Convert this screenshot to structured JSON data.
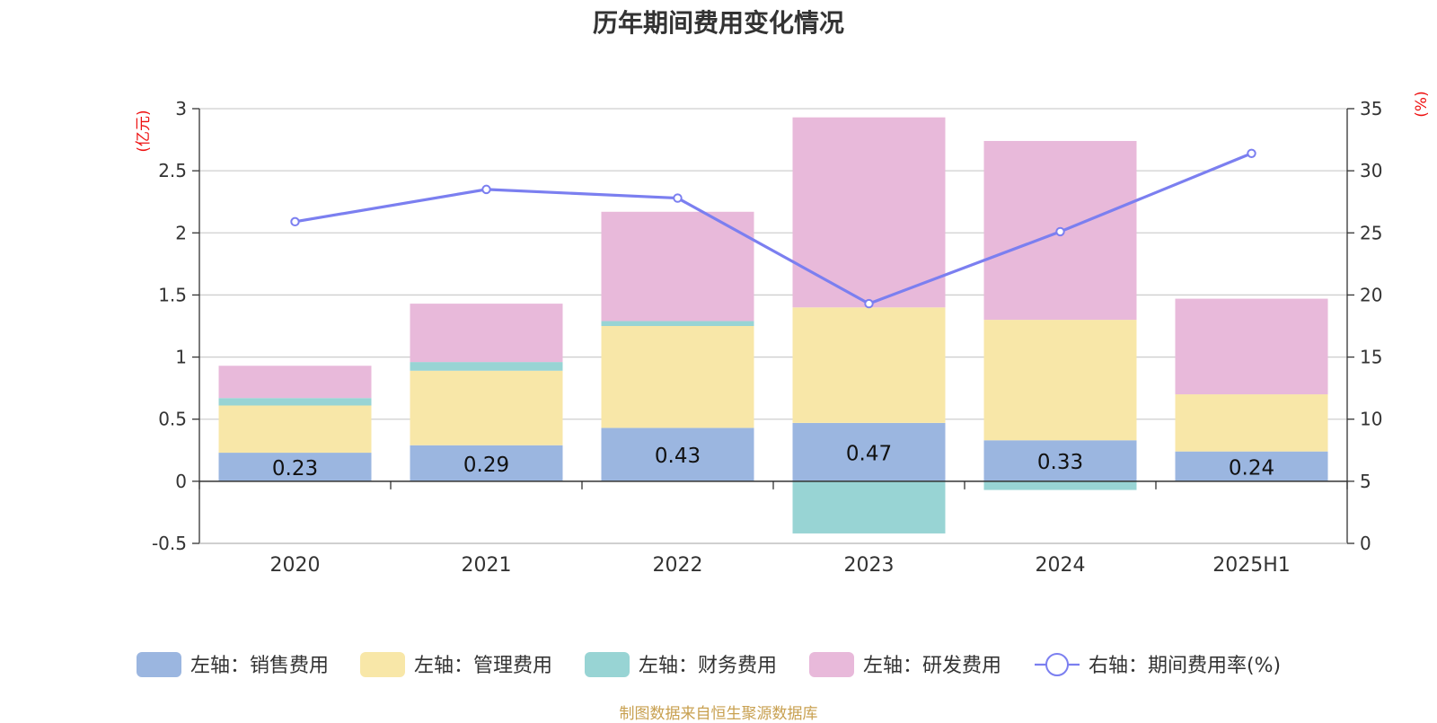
{
  "chart_data": {
    "type": "bar",
    "stacked": true,
    "title": "历年期间费用变化情况",
    "categories": [
      "2020",
      "2021",
      "2022",
      "2023",
      "2024",
      "2025H1"
    ],
    "left_axis": {
      "unit_label": "(亿元)",
      "ylim": [
        -0.5,
        3
      ],
      "ticks": [
        "-0.5",
        "0",
        "0.5",
        "1",
        "1.5",
        "2",
        "2.5",
        "3"
      ],
      "tick_values": [
        -0.5,
        0,
        0.5,
        1,
        1.5,
        2,
        2.5,
        3
      ]
    },
    "right_axis": {
      "unit_label": "(%)",
      "ylim": [
        0,
        35
      ],
      "ticks": [
        "0",
        "5",
        "10",
        "15",
        "20",
        "25",
        "30",
        "35"
      ],
      "tick_values": [
        0,
        5,
        10,
        15,
        20,
        25,
        30,
        35
      ]
    },
    "series": [
      {
        "name": "左轴：销售费用",
        "axis": "left",
        "kind": "bar",
        "color": "#9bb6e0",
        "values": [
          0.23,
          0.29,
          0.43,
          0.47,
          0.33,
          0.24
        ],
        "labels": [
          "0.23",
          "0.29",
          "0.43",
          "0.47",
          "0.33",
          "0.24"
        ]
      },
      {
        "name": "左轴：管理费用",
        "axis": "left",
        "kind": "bar",
        "color": "#f8e7a8",
        "values": [
          0.38,
          0.6,
          0.82,
          0.93,
          0.97,
          0.46
        ]
      },
      {
        "name": "左轴：财务费用",
        "axis": "left",
        "kind": "bar",
        "color": "#98d4d4",
        "values": [
          0.06,
          0.07,
          0.04,
          -0.42,
          -0.07,
          0.0
        ]
      },
      {
        "name": "左轴：研发费用",
        "axis": "left",
        "kind": "bar",
        "color": "#e8b9da",
        "values": [
          0.26,
          0.47,
          0.88,
          1.53,
          1.44,
          0.77
        ]
      },
      {
        "name": "右轴：期间费用率(%)",
        "axis": "right",
        "kind": "line",
        "color": "#7b7ff0",
        "values": [
          25.9,
          28.5,
          27.8,
          19.3,
          25.1,
          31.4
        ]
      }
    ],
    "grid": true,
    "legend_position": "bottom"
  },
  "footer": {
    "source": "制图数据来自恒生聚源数据库"
  }
}
